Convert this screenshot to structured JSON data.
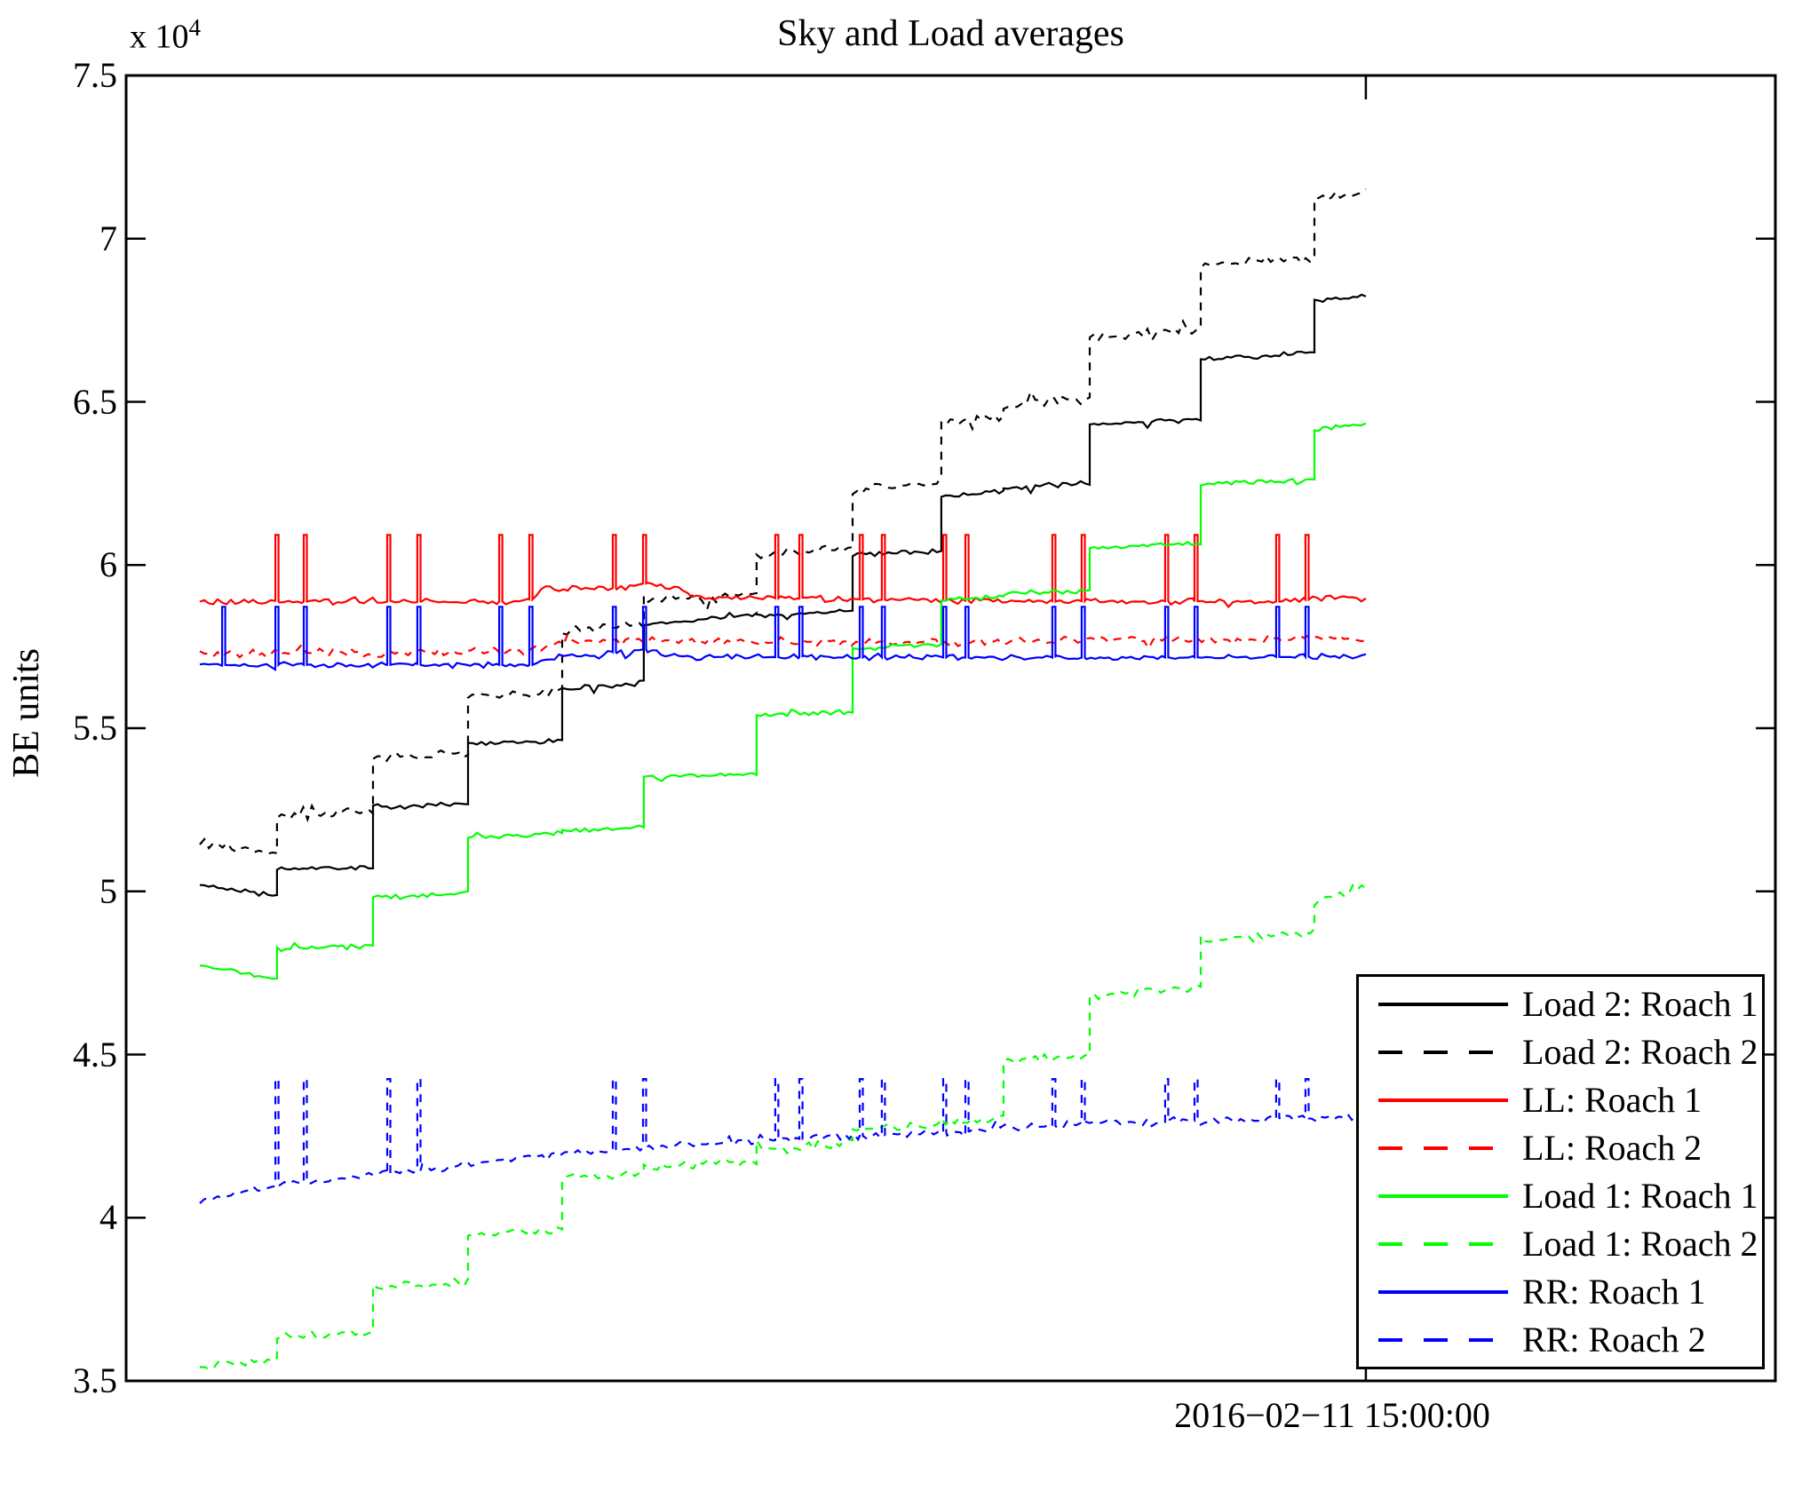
{
  "chart_data": {
    "type": "line",
    "title": "Sky and Load averages",
    "ylabel": "BE units",
    "y_scale_base": "x 10",
    "y_scale_exp": "4",
    "ylim": [
      3.5,
      7.5
    ],
    "yticks": [
      7.5,
      7,
      6.5,
      6,
      5.5,
      5,
      4.5,
      4,
      3.5
    ],
    "grid": false,
    "legend_position": "lower right",
    "x_tick": {
      "pos": 0.7517,
      "label": "2016−02−11 15:00:00"
    },
    "x_range": [
      0.0447,
      0.7517
    ],
    "step_bounds": [
      0.0447,
      0.0915,
      0.1497,
      0.2073,
      0.2644,
      0.3139,
      0.3823,
      0.4405,
      0.4943,
      0.532,
      0.5843,
      0.6516,
      0.7205,
      0.7517
    ],
    "series": [
      {
        "name": "Load 2: Roach 1",
        "color": "#000000",
        "dash": false,
        "kind": "steps",
        "jitter": 0.009,
        "levels_start": [
          5.02,
          5.068,
          5.258,
          5.452,
          5.622,
          5.815,
          5.845,
          6.028,
          6.21,
          6.235,
          6.43,
          6.633,
          6.812
        ],
        "levels_end": [
          4.985,
          5.075,
          5.268,
          5.462,
          5.638,
          5.85,
          5.857,
          6.042,
          6.225,
          6.252,
          6.448,
          6.648,
          6.825
        ]
      },
      {
        "name": "Load 2: Roach 2",
        "color": "#000000",
        "dash": true,
        "kind": "steps",
        "jitter": 0.016,
        "levels_start": [
          5.148,
          5.228,
          5.408,
          5.598,
          5.8,
          5.895,
          6.03,
          6.23,
          6.44,
          6.49,
          6.7,
          6.92,
          7.12
        ],
        "levels_end": [
          5.118,
          5.245,
          5.425,
          5.615,
          5.815,
          5.91,
          6.055,
          6.25,
          6.455,
          6.515,
          6.72,
          6.94,
          7.148
        ]
      },
      {
        "name": "LL: Roach 1",
        "color": "#ff0000",
        "dash": false,
        "kind": "poly",
        "jitter": 0.011,
        "points": [
          [
            0.0447,
            5.888
          ],
          [
            0.243,
            5.888
          ],
          [
            0.252,
            5.925
          ],
          [
            0.3,
            5.93
          ],
          [
            0.315,
            5.945
          ],
          [
            0.332,
            5.932
          ],
          [
            0.348,
            5.902
          ],
          [
            0.42,
            5.896
          ],
          [
            0.52,
            5.89
          ],
          [
            0.705,
            5.888
          ],
          [
            0.732,
            5.903
          ],
          [
            0.7517,
            5.895
          ]
        ],
        "spikes": {
          "top": 6.092,
          "xs": [
            0.0905,
            0.1077,
            0.1583,
            0.1766,
            0.2262,
            0.2445,
            0.2951,
            0.3134,
            0.3936,
            0.4082,
            0.4448,
            0.4582,
            0.4954,
            0.5089,
            0.5616,
            0.5794,
            0.63,
            0.6478,
            0.6973,
            0.7151
          ]
        }
      },
      {
        "name": "LL: Roach 2",
        "color": "#ff0000",
        "dash": true,
        "kind": "poly",
        "jitter": 0.015,
        "points": [
          [
            0.0447,
            5.728
          ],
          [
            0.243,
            5.733
          ],
          [
            0.262,
            5.765
          ],
          [
            0.33,
            5.768
          ],
          [
            0.43,
            5.76
          ],
          [
            0.55,
            5.768
          ],
          [
            0.7517,
            5.776
          ]
        ]
      },
      {
        "name": "Load 1: Roach 1",
        "color": "#00ff00",
        "dash": false,
        "kind": "steps",
        "jitter": 0.009,
        "levels_start": [
          4.772,
          4.822,
          4.982,
          5.168,
          5.185,
          5.348,
          5.538,
          5.745,
          5.895,
          5.912,
          6.052,
          6.248,
          6.415
        ],
        "levels_end": [
          4.732,
          4.835,
          4.995,
          5.178,
          5.195,
          5.362,
          5.552,
          5.758,
          5.905,
          5.922,
          6.068,
          6.262,
          6.432
        ]
      },
      {
        "name": "Load 1: Roach 2",
        "color": "#00ff00",
        "dash": true,
        "kind": "steps",
        "jitter": 0.016,
        "levels_start": [
          3.545,
          3.632,
          3.785,
          3.948,
          4.122,
          4.155,
          4.21,
          4.272,
          4.295,
          4.478,
          4.682,
          4.852,
          4.965
        ],
        "levels_end": [
          3.568,
          3.652,
          3.802,
          3.968,
          4.135,
          4.172,
          4.23,
          4.288,
          4.308,
          4.498,
          4.702,
          4.872,
          5.012
        ]
      },
      {
        "name": "RR: Roach 1",
        "color": "#0000ff",
        "dash": false,
        "kind": "poly",
        "jitter": 0.01,
        "points": [
          [
            0.0447,
            5.694
          ],
          [
            0.245,
            5.694
          ],
          [
            0.26,
            5.718
          ],
          [
            0.315,
            5.742
          ],
          [
            0.336,
            5.718
          ],
          [
            0.6,
            5.716
          ],
          [
            0.7517,
            5.72
          ]
        ],
        "spikes": {
          "top": 5.872,
          "xs": [
            0.0582,
            0.0905,
            0.1077,
            0.1583,
            0.1766,
            0.2262,
            0.2445,
            0.2951,
            0.3134,
            0.3936,
            0.4082,
            0.4448,
            0.4582,
            0.4954,
            0.5089,
            0.5616,
            0.5794,
            0.63,
            0.6478,
            0.6973,
            0.7151
          ]
        }
      },
      {
        "name": "RR: Roach 2",
        "color": "#0000ff",
        "dash": true,
        "kind": "poly",
        "jitter": 0.014,
        "points": [
          [
            0.0447,
            4.052
          ],
          [
            0.0915,
            4.098
          ],
          [
            0.1497,
            4.128
          ],
          [
            0.2073,
            4.163
          ],
          [
            0.2644,
            4.193
          ],
          [
            0.3139,
            4.215
          ],
          [
            0.3823,
            4.235
          ],
          [
            0.4405,
            4.25
          ],
          [
            0.4943,
            4.26
          ],
          [
            0.532,
            4.272
          ],
          [
            0.5843,
            4.288
          ],
          [
            0.6516,
            4.298
          ],
          [
            0.7205,
            4.305
          ],
          [
            0.7486,
            4.308
          ]
        ],
        "end_x": 0.7486,
        "spikes": {
          "top": 4.425,
          "xs": [
            0.0905,
            0.1077,
            0.1583,
            0.1766,
            0.2951,
            0.3134,
            0.3936,
            0.4082,
            0.4448,
            0.4582,
            0.4954,
            0.5089,
            0.5616,
            0.5794,
            0.63,
            0.6478,
            0.6973,
            0.7151
          ]
        }
      }
    ],
    "legend": [
      {
        "label": "Load 2: Roach 1",
        "color": "#000000",
        "dash": false
      },
      {
        "label": "Load 2: Roach 2",
        "color": "#000000",
        "dash": true
      },
      {
        "label": "LL: Roach 1",
        "color": "#ff0000",
        "dash": false
      },
      {
        "label": "LL: Roach 2",
        "color": "#ff0000",
        "dash": true
      },
      {
        "label": "Load 1: Roach 1",
        "color": "#00ff00",
        "dash": false
      },
      {
        "label": "Load 1: Roach 2",
        "color": "#00ff00",
        "dash": true
      },
      {
        "label": "RR: Roach 1",
        "color": "#0000ff",
        "dash": false
      },
      {
        "label": "RR: Roach 2",
        "color": "#0000ff",
        "dash": true
      }
    ],
    "axis_color": "#000000",
    "background": "#ffffff"
  }
}
